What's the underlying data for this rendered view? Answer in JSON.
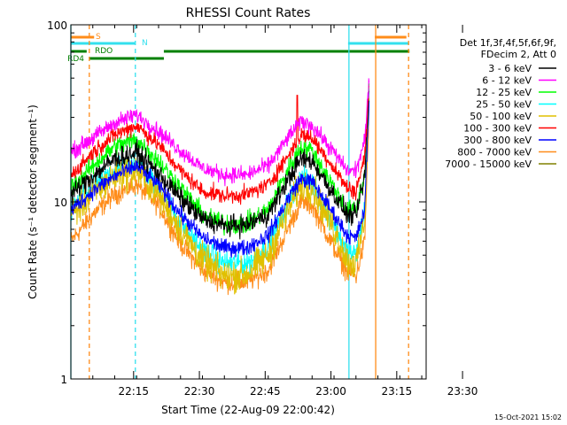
{
  "chart_data": {
    "type": "line",
    "title": "RHESSI Count Rates",
    "xlabel": "Start Time (22-Aug-09 22:00:42)",
    "ylabel": "Count Rate (s⁻¹ detector segment⁻¹)",
    "yscale": "log",
    "ylim": [
      1,
      100
    ],
    "xlim_minutes": [
      0,
      81
    ],
    "x_ticks": [
      "22:15",
      "22:30",
      "22:45",
      "23:00",
      "23:15",
      "23:30"
    ],
    "y_ticks": [
      "1",
      "10",
      "100"
    ],
    "grid": false,
    "legend_position": "right",
    "legend_header": [
      "Det 1f,3f,4f,5f,6f,9f,",
      "FDecim 2, Att 0"
    ],
    "footer_date": "15-Oct-2021 15:02",
    "flags": [
      {
        "label": "S",
        "color": "#ff8c1a"
      },
      {
        "label": "N",
        "color": "#33e0ee"
      },
      {
        "label": "RDO",
        "color": "#008000"
      },
      {
        "label": "RD4",
        "color": "#008000"
      }
    ],
    "flag_intervals_minutes": {
      "S": [
        [
          0,
          5.3
        ],
        [
          69.3,
          76.5
        ]
      ],
      "N": [
        [
          0,
          14.6
        ],
        [
          63.2,
          77.1
        ]
      ],
      "RDO": [
        [
          0,
          3.6
        ],
        [
          21.2,
          77.2
        ]
      ],
      "RD4": [
        [
          4.3,
          21.2
        ]
      ]
    },
    "vertical_markers": [
      {
        "x_min": 0.0,
        "color": "#33e0ee",
        "style": "solid"
      },
      {
        "x_min": 4.2,
        "color": "#ff8c1a",
        "style": "dashed"
      },
      {
        "x_min": 14.7,
        "color": "#33e0ee",
        "style": "dashed"
      },
      {
        "x_min": 63.4,
        "color": "#33e0ee",
        "style": "solid"
      },
      {
        "x_min": 69.5,
        "color": "#ff8c1a",
        "style": "solid"
      },
      {
        "x_min": 77.0,
        "color": "#ff8c1a",
        "style": "dashed"
      }
    ],
    "x_minutes": [
      0,
      5,
      10,
      15,
      20,
      25,
      30,
      35,
      40,
      45,
      50,
      52.5,
      55,
      60,
      63,
      65,
      67,
      68
    ],
    "series": [
      {
        "name": "3 - 6 keV",
        "color": "#000000",
        "noise": 0.05,
        "values": [
          11,
          14,
          17.5,
          19,
          14.5,
          10.5,
          8,
          7.3,
          7.4,
          8.5,
          14,
          17.5,
          17,
          11,
          8.5,
          8.3,
          14,
          45
        ]
      },
      {
        "name": "6 - 12 keV",
        "color": "#ff00ff",
        "noise": 0.04,
        "values": [
          19,
          23,
          28,
          31,
          25,
          19.5,
          15.5,
          14.2,
          14.2,
          16,
          24,
          28.5,
          27,
          19,
          15,
          15,
          22,
          48
        ]
      },
      {
        "name": "12 - 25 keV",
        "color": "#00ff00",
        "noise": 0.05,
        "values": [
          12,
          16,
          20.5,
          22.5,
          17,
          12,
          8.5,
          7.5,
          7.5,
          9,
          16,
          20.5,
          19.5,
          12,
          9,
          9,
          14,
          45
        ]
      },
      {
        "name": "25 - 50 keV",
        "color": "#00ffff",
        "noise": 0.06,
        "values": [
          9,
          12,
          15,
          17,
          12,
          7.6,
          5.3,
          4.5,
          4.5,
          5.6,
          10.5,
          13.5,
          12.8,
          7.5,
          5.2,
          5,
          9,
          42
        ]
      },
      {
        "name": "50 - 100 keV",
        "color": "#e0c000",
        "noise": 0.08,
        "values": [
          8.5,
          11,
          14,
          15,
          11,
          7,
          4.7,
          3.8,
          3.9,
          5,
          9.5,
          12.5,
          12,
          7,
          4.7,
          4.4,
          8,
          40
        ]
      },
      {
        "name": "100 - 300 keV",
        "color": "#ff0000",
        "noise": 0.04,
        "values": [
          14,
          19,
          24,
          27,
          21,
          15,
          11.5,
          10.8,
          11,
          12.5,
          19,
          24,
          23,
          15.5,
          12,
          11.5,
          18,
          46
        ]
      },
      {
        "name": "300 - 800 keV",
        "color": "#0000ff",
        "noise": 0.04,
        "values": [
          9,
          11.5,
          14,
          16,
          12.5,
          8.5,
          6.3,
          5.5,
          5.5,
          6.5,
          11,
          13.5,
          13,
          8.5,
          6.5,
          6.2,
          9,
          38
        ]
      },
      {
        "name": "800 - 7000 keV",
        "color": "#ff8c1a",
        "noise": 0.05,
        "values": [
          6,
          8.5,
          11,
          12.5,
          9.5,
          5.8,
          4.1,
          3.5,
          3.5,
          4.1,
          7.5,
          10,
          9.5,
          5.5,
          4,
          3.8,
          6,
          33
        ]
      },
      {
        "name": "7000 - 15000 keV",
        "color": "#808000",
        "noise": 0.03,
        "values": [
          null,
          null,
          null,
          null,
          null,
          null,
          null,
          null,
          null,
          null,
          null,
          null,
          null,
          null,
          null,
          null,
          null,
          null
        ]
      }
    ]
  }
}
